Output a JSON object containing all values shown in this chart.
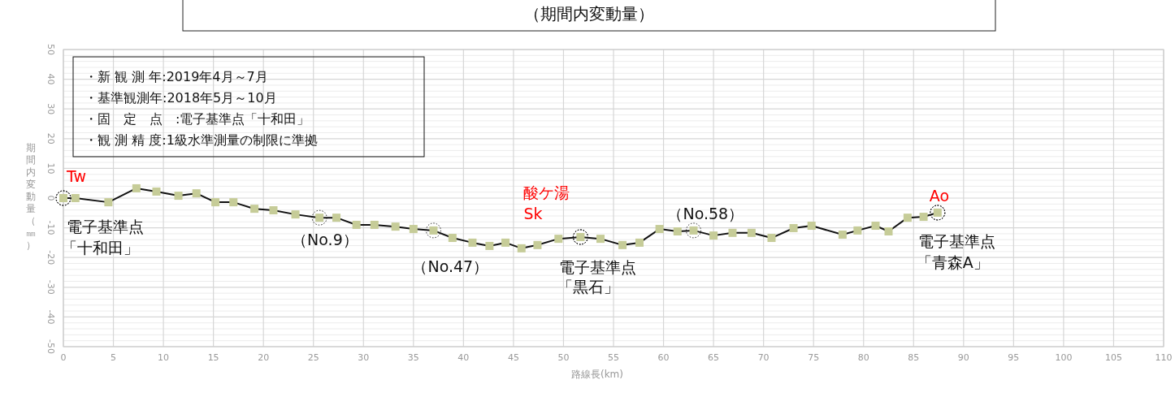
{
  "chart_data": {
    "type": "line",
    "title": "（期間内変動量）",
    "xlabel": "路線長(km)",
    "ylabel": "期間内変動量（㎜）",
    "xlim": [
      0,
      110
    ],
    "xticks": [
      0,
      5,
      10,
      15,
      20,
      25,
      30,
      35,
      40,
      45,
      50,
      55,
      60,
      65,
      70,
      75,
      80,
      85,
      90,
      95,
      100,
      105,
      110
    ],
    "ylim": [
      -50,
      50
    ],
    "yticks": [
      -50,
      -40,
      -30,
      -20,
      -10,
      0,
      10,
      20,
      30,
      40,
      50
    ],
    "grid": true,
    "marker": "square",
    "line_style": "solid",
    "x": [
      0,
      1.2,
      4.5,
      7.3,
      9.3,
      11.5,
      13.3,
      15.2,
      17.0,
      19.1,
      21.0,
      23.2,
      25.6,
      27.3,
      29.3,
      31.1,
      33.2,
      35.0,
      37.0,
      38.9,
      40.9,
      42.6,
      44.2,
      45.8,
      47.4,
      49.5,
      51.7,
      53.7,
      55.9,
      57.6,
      59.6,
      61.4,
      63.0,
      65.0,
      66.9,
      68.8,
      70.8,
      73.0,
      74.8,
      77.9,
      79.4,
      81.2,
      82.5,
      84.4,
      86.0,
      87.4
    ],
    "series": [
      {
        "color": "#c6cc98",
        "values": [
          0,
          0,
          -1.4,
          3.3,
          2.2,
          0.8,
          1.6,
          -1.4,
          -1.4,
          -3.6,
          -4.1,
          -5.5,
          -6.6,
          -6.6,
          -9.0,
          -9.0,
          -9.6,
          -10.4,
          -10.9,
          -13.4,
          -15.0,
          -16.1,
          -15.0,
          -16.9,
          -15.8,
          -13.7,
          -13.1,
          -13.7,
          -15.8,
          -15.0,
          -10.4,
          -11.2,
          -10.9,
          -12.6,
          -11.7,
          -11.7,
          -13.4,
          -10.1,
          -9.3,
          -12.3,
          -10.9,
          -9.3,
          -11.2,
          -6.6,
          -6.3,
          -4.9
        ]
      }
    ],
    "annotations": [
      "・新 観 測 年:2019年4月～7月",
      "・基準観測年:2018年5月～10月",
      "・固　定　点　:電子基準点「十和田」",
      "・観 測 精 度:1級水準測量の制限に準拠",
      {
        "text": "Tw",
        "x": 0,
        "y": 0
      },
      {
        "text": "電子基準点",
        "x": 0,
        "y": 0
      },
      {
        "text": "「十和田」",
        "x": 0,
        "y": 0
      },
      {
        "text": "（No.9）",
        "x": 25.6,
        "y": -6.6
      },
      {
        "text": "（No.47）",
        "x": 37.0,
        "y": -10.9
      },
      {
        "text": "酸ケ湯\nSk",
        "x": 51.7,
        "y": -13.1
      },
      {
        "text": "電子基準点",
        "x": 51.7,
        "y": -13.1
      },
      {
        "text": "「黒石」",
        "x": 51.7,
        "y": -13.1
      },
      {
        "text": "（No.58）",
        "x": 63.0,
        "y": -10.9
      },
      {
        "text": "Ao",
        "x": 87.4,
        "y": -4.9
      },
      {
        "text": "電子基準点",
        "x": 87.4,
        "y": -4.9
      },
      {
        "text": "「青森A」",
        "x": 87.4,
        "y": -4.9
      }
    ]
  }
}
